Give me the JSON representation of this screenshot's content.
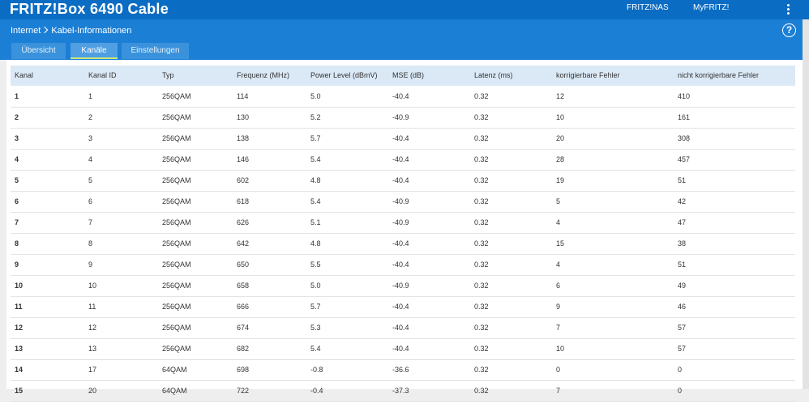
{
  "header": {
    "title": "FRITZ!Box 6490 Cable",
    "links": [
      "FRITZ!NAS",
      "MyFRITZ!"
    ]
  },
  "breadcrumb": [
    "Internet",
    "Kabel-Informationen"
  ],
  "help": "?",
  "tabs": {
    "items": [
      "Übersicht",
      "Kanäle",
      "Einstellungen"
    ],
    "active": 1
  },
  "table": {
    "columns": [
      "Kanal",
      "Kanal ID",
      "Typ",
      "Frequenz (MHz)",
      "Power Level (dBmV)",
      "MSE (dB)",
      "Latenz (ms)",
      "korrigierbare Fehler",
      "nicht korrigierbare Fehler"
    ],
    "rows": [
      [
        "1",
        "1",
        "256QAM",
        "114",
        "5.0",
        "-40.4",
        "0.32",
        "12",
        "410"
      ],
      [
        "2",
        "2",
        "256QAM",
        "130",
        "5.2",
        "-40.9",
        "0.32",
        "10",
        "161"
      ],
      [
        "3",
        "3",
        "256QAM",
        "138",
        "5.7",
        "-40.4",
        "0.32",
        "20",
        "308"
      ],
      [
        "4",
        "4",
        "256QAM",
        "146",
        "5.4",
        "-40.4",
        "0.32",
        "28",
        "457"
      ],
      [
        "5",
        "5",
        "256QAM",
        "602",
        "4.8",
        "-40.4",
        "0.32",
        "19",
        "51"
      ],
      [
        "6",
        "6",
        "256QAM",
        "618",
        "5.4",
        "-40.9",
        "0.32",
        "5",
        "42"
      ],
      [
        "7",
        "7",
        "256QAM",
        "626",
        "5.1",
        "-40.9",
        "0.32",
        "4",
        "47"
      ],
      [
        "8",
        "8",
        "256QAM",
        "642",
        "4.8",
        "-40.4",
        "0.32",
        "15",
        "38"
      ],
      [
        "9",
        "9",
        "256QAM",
        "650",
        "5.5",
        "-40.4",
        "0.32",
        "4",
        "51"
      ],
      [
        "10",
        "10",
        "256QAM",
        "658",
        "5.0",
        "-40.9",
        "0.32",
        "6",
        "49"
      ],
      [
        "11",
        "11",
        "256QAM",
        "666",
        "5.7",
        "-40.4",
        "0.32",
        "9",
        "46"
      ],
      [
        "12",
        "12",
        "256QAM",
        "674",
        "5.3",
        "-40.4",
        "0.32",
        "7",
        "57"
      ],
      [
        "13",
        "13",
        "256QAM",
        "682",
        "5.4",
        "-40.4",
        "0.32",
        "10",
        "57"
      ],
      [
        "14",
        "17",
        "64QAM",
        "698",
        "-0.8",
        "-36.6",
        "0.32",
        "0",
        "0"
      ],
      [
        "15",
        "20",
        "64QAM",
        "722",
        "-0.4",
        "-37.3",
        "0.32",
        "7",
        "0"
      ]
    ]
  }
}
